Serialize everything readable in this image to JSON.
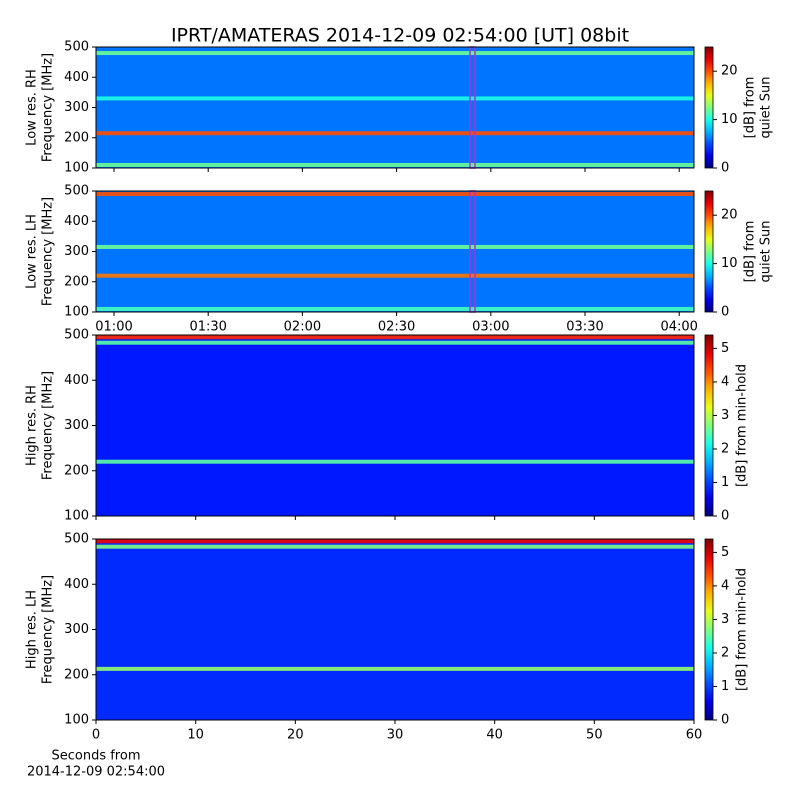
{
  "title": "IPRT/AMATERAS 2014-12-09 02:54:00 [UT]   08bit",
  "chart_data": [
    {
      "type": "spectrogram",
      "ylabel": [
        "Low res. RH",
        "Frequency [MHz]"
      ],
      "ylim": [
        100,
        500
      ],
      "yticks": [
        100,
        200,
        300,
        400,
        500
      ],
      "clim": [
        0,
        25
      ],
      "cticks": [
        0,
        10,
        20
      ],
      "clabel": [
        "[dB] from",
        "quiet Sun"
      ],
      "colormap": "jet",
      "background": 6,
      "bands": [
        {
          "freq": 110,
          "value": 12
        },
        {
          "freq": 215,
          "value": 20
        },
        {
          "freq": 330,
          "value": 10
        },
        {
          "freq": 480,
          "value": 12
        }
      ]
    },
    {
      "type": "spectrogram",
      "ylabel": [
        "Low res. LH",
        "Frequency [MHz]"
      ],
      "ylim": [
        100,
        500
      ],
      "yticks": [
        100,
        200,
        300,
        400,
        500
      ],
      "clim": [
        0,
        25
      ],
      "cticks": [
        0,
        10,
        20
      ],
      "clabel": [
        "[dB] from",
        "quiet Sun"
      ],
      "colormap": "jet",
      "background": 6,
      "bands": [
        {
          "freq": 110,
          "value": 11
        },
        {
          "freq": 220,
          "value": 19
        },
        {
          "freq": 315,
          "value": 12
        },
        {
          "freq": 490,
          "value": 20
        }
      ],
      "time_ticks": [
        "01:00",
        "01:30",
        "02:00",
        "02:30",
        "03:00",
        "03:30",
        "04:00"
      ]
    },
    {
      "type": "spectrogram",
      "ylabel": [
        "High res. RH",
        "Frequency [MHz]"
      ],
      "ylim": [
        100,
        500
      ],
      "yticks": [
        100,
        200,
        300,
        400,
        500
      ],
      "clim": [
        0,
        5.4
      ],
      "cticks": [
        0,
        1,
        2,
        3,
        4,
        5
      ],
      "clabel": [
        "[dB] from min-hold"
      ],
      "colormap": "jet",
      "background": 0.8,
      "bands": [
        {
          "freq": 220,
          "value": 2.5
        },
        {
          "freq": 483,
          "value": 2.5
        },
        {
          "freq": 495,
          "value": 4.5
        }
      ]
    },
    {
      "type": "spectrogram",
      "ylabel": [
        "High res. LH",
        "Frequency [MHz]"
      ],
      "ylim": [
        100,
        500
      ],
      "yticks": [
        100,
        200,
        300,
        400,
        500
      ],
      "clim": [
        0,
        5.4
      ],
      "cticks": [
        0,
        1,
        2,
        3,
        4,
        5
      ],
      "clabel": [
        "[dB] from min-hold"
      ],
      "colormap": "jet",
      "background": 0.9,
      "bands": [
        {
          "freq": 213,
          "value": 2.8
        },
        {
          "freq": 483,
          "value": 2.7
        },
        {
          "freq": 495,
          "value": 4.8
        }
      ],
      "xlim": [
        0,
        60
      ],
      "xticks": [
        0,
        10,
        20,
        30,
        40,
        50,
        60
      ],
      "xlabel": [
        "Seconds from",
        "2014-12-09 02:54:00"
      ]
    }
  ]
}
